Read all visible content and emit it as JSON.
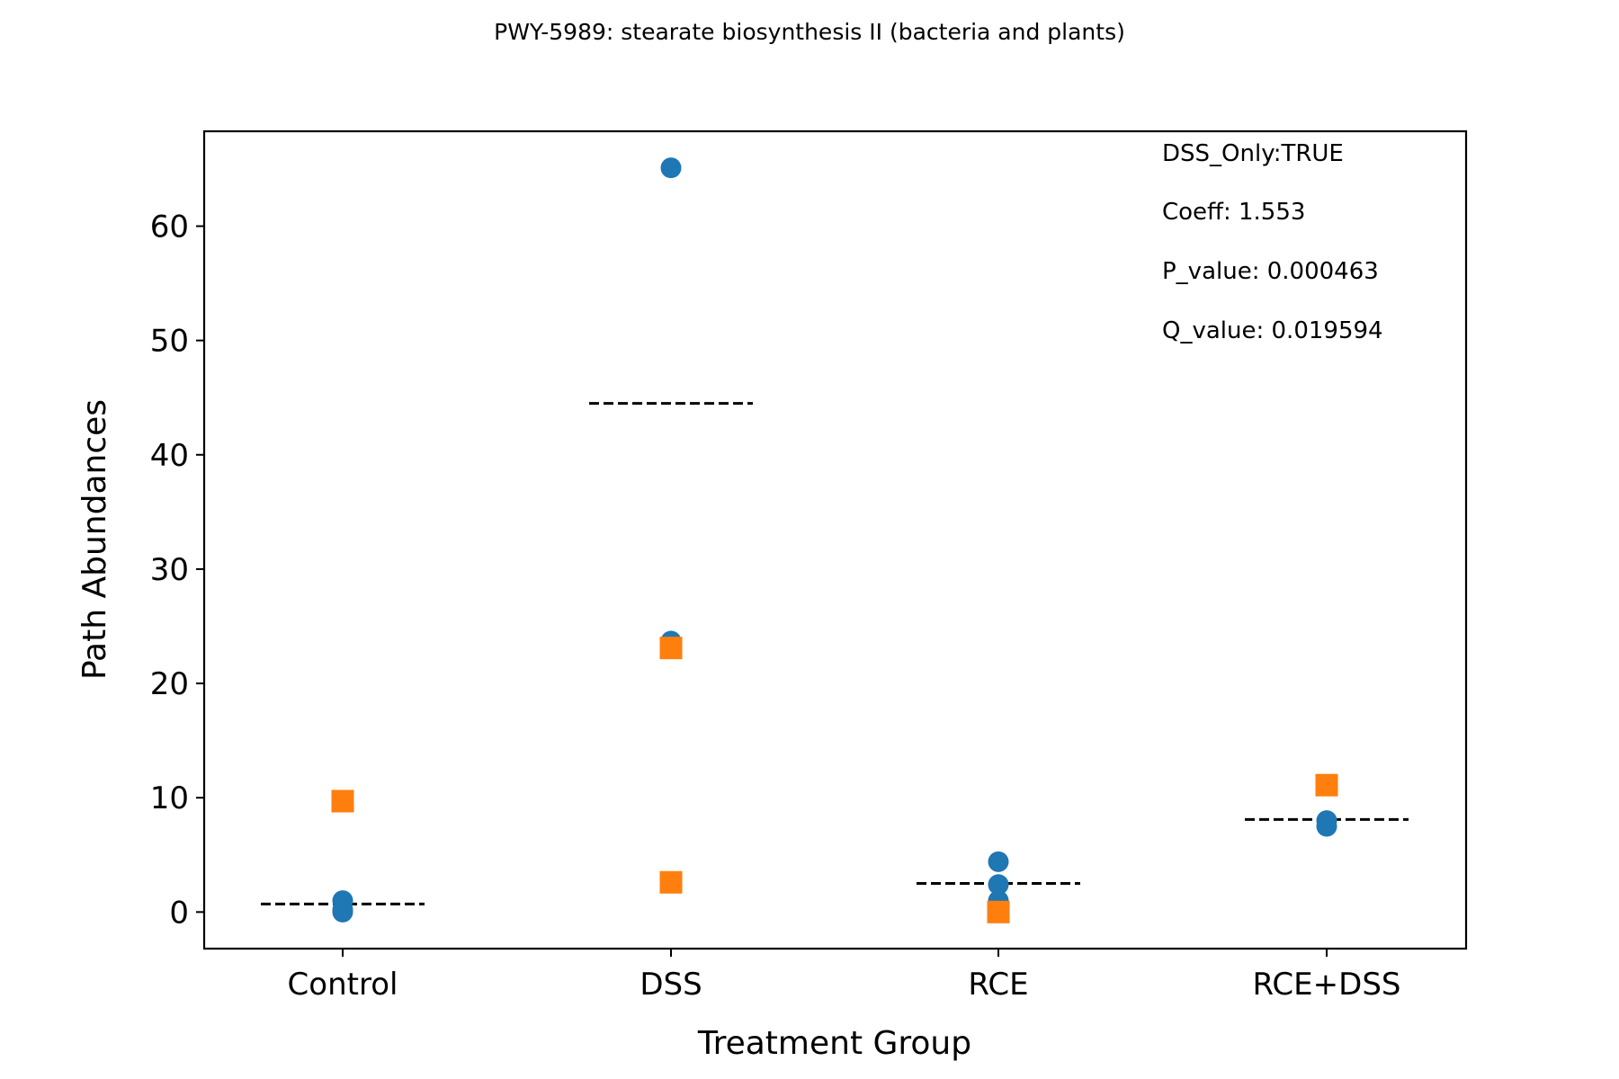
{
  "chart_data": {
    "type": "scatter",
    "title": "PWY-5989: stearate biosynthesis II (bacteria and plants)",
    "xlabel": "Treatment Group",
    "ylabel": "Path Abundances",
    "categories": [
      "Control",
      "DSS",
      "RCE",
      "RCE+DSS"
    ],
    "yticks": [
      0,
      10,
      20,
      30,
      40,
      50,
      60
    ],
    "ylim": [
      -3.2,
      68.3
    ],
    "grid": false,
    "series": [
      {
        "marker": "circle",
        "color": "#1f77b4",
        "points": [
          {
            "category": "Control",
            "y": 1.0
          },
          {
            "category": "Control",
            "y": 0.2
          },
          {
            "category": "Control",
            "y": 0.0
          },
          {
            "category": "DSS",
            "y": 65.1
          },
          {
            "category": "DSS",
            "y": 23.7
          },
          {
            "category": "RCE",
            "y": 4.4
          },
          {
            "category": "RCE",
            "y": 2.4
          },
          {
            "category": "RCE",
            "y": 1.0
          },
          {
            "category": "RCE+DSS",
            "y": 8.0
          },
          {
            "category": "RCE+DSS",
            "y": 7.5
          }
        ]
      },
      {
        "marker": "square",
        "color": "#ff7f0e",
        "points": [
          {
            "category": "Control",
            "y": 9.7
          },
          {
            "category": "DSS",
            "y": 23.1
          },
          {
            "category": "DSS",
            "y": 2.6
          },
          {
            "category": "RCE",
            "y": 0.0
          },
          {
            "category": "RCE+DSS",
            "y": 11.1
          }
        ]
      }
    ],
    "means": [
      {
        "category": "Control",
        "y": 0.7
      },
      {
        "category": "DSS",
        "y": 44.5
      },
      {
        "category": "RCE",
        "y": 2.5
      },
      {
        "category": "RCE+DSS",
        "y": 8.1
      }
    ],
    "annotations": [
      "DSS_Only:TRUE",
      "Coeff: 1.553",
      "P_value: 0.000463",
      "Q_value: 0.019594"
    ]
  }
}
